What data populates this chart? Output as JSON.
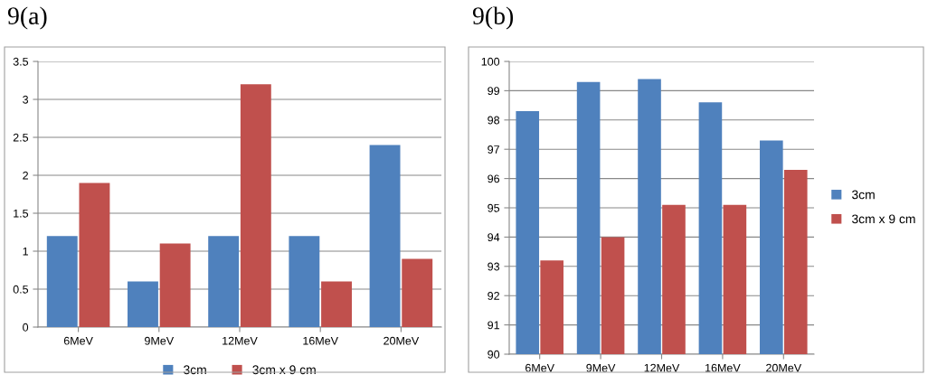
{
  "chart_data": [
    {
      "type": "bar",
      "title": "9(a)",
      "categories": [
        "6MeV",
        "9MeV",
        "12MeV",
        "16MeV",
        "20MeV"
      ],
      "series": [
        {
          "name": "3cm",
          "color": "#4f81bd",
          "values": [
            1.2,
            0.6,
            1.2,
            1.2,
            2.4
          ]
        },
        {
          "name": "3cm x 9 cm",
          "color": "#c0504d",
          "values": [
            1.9,
            1.1,
            3.2,
            0.6,
            0.9
          ]
        }
      ],
      "ylim": [
        0,
        3.5
      ],
      "yticks": [
        0,
        0.5,
        1,
        1.5,
        2,
        2.5,
        3,
        3.5
      ],
      "grid": "y",
      "legend": "bottom"
    },
    {
      "type": "bar",
      "title": "9(b)",
      "categories": [
        "6MeV",
        "9MeV",
        "12MeV",
        "16MeV",
        "20MeV"
      ],
      "series": [
        {
          "name": "3cm",
          "color": "#4f81bd",
          "values": [
            98.3,
            99.3,
            99.4,
            98.6,
            97.3
          ]
        },
        {
          "name": "3cm x 9 cm",
          "color": "#c0504d",
          "values": [
            93.2,
            94.0,
            95.1,
            95.1,
            96.3
          ]
        }
      ],
      "ylim": [
        90,
        100
      ],
      "yticks": [
        90,
        91,
        92,
        93,
        94,
        95,
        96,
        97,
        98,
        99,
        100
      ],
      "grid": "y",
      "legend": "right"
    }
  ]
}
